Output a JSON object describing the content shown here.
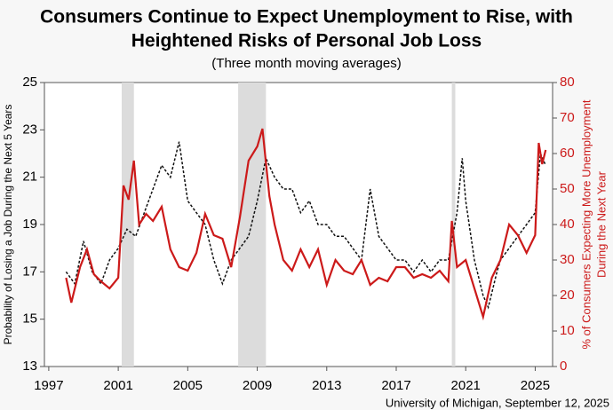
{
  "chart_data": {
    "type": "line",
    "title": "Consumers Continue to Expect Unemployment to Rise, with",
    "title_line2": "Heightened Risks of Personal Job Loss",
    "subtitle": "(Three month moving averages)",
    "y_label": "Probability of Losing a Job During the Next 5 Years",
    "y2_label": "% of Consumers Expecting More Unemployment",
    "y2_label_line2": "During the Next Year",
    "source": "University of Michigan, September 12, 2025",
    "xlim": [
      1996.75,
      2026
    ],
    "xticks": [
      1997,
      2001,
      2005,
      2009,
      2013,
      2017,
      2021,
      2025
    ],
    "ylim": [
      13,
      25
    ],
    "yticks": [
      13,
      15,
      17,
      19,
      21,
      23,
      25
    ],
    "y2lim": [
      0,
      80
    ],
    "y2ticks": [
      0,
      10,
      20,
      30,
      40,
      50,
      60,
      70,
      80
    ],
    "shaded_periods": [
      [
        2001.2,
        2001.9
      ],
      [
        2007.9,
        2009.5
      ],
      [
        2020.2,
        2020.4
      ]
    ],
    "shade_color": "#dcdcdc",
    "series": [
      {
        "name": "Probability of Losing a Job",
        "color": "#111111",
        "dashed": true,
        "axis": "y",
        "x": [
          1998,
          1998.5,
          1999,
          1999.5,
          2000,
          2000.5,
          2001,
          2001.5,
          2002,
          2002.5,
          2003,
          2003.5,
          2004,
          2004.5,
          2005,
          2005.5,
          2006,
          2006.5,
          2007,
          2007.5,
          2008,
          2008.5,
          2009,
          2009.5,
          2010,
          2010.5,
          2011,
          2011.5,
          2012,
          2012.5,
          2013,
          2013.5,
          2014,
          2014.5,
          2015,
          2015.5,
          2016,
          2016.5,
          2017,
          2017.5,
          2018,
          2018.5,
          2019,
          2019.5,
          2020,
          2020.5,
          2020.8,
          2021,
          2021.5,
          2022,
          2022.3,
          2022.8,
          2023,
          2023.5,
          2024,
          2024.5,
          2025,
          2025.3,
          2025.6
        ],
        "values": [
          17,
          16.5,
          18.3,
          17,
          16.5,
          17.5,
          18,
          18.8,
          18.5,
          19.5,
          20.5,
          21.5,
          21,
          22.5,
          20,
          19.5,
          19,
          17.5,
          16.5,
          17.5,
          18,
          18.5,
          20,
          21.8,
          21,
          20.5,
          20.5,
          19.5,
          20,
          19,
          19,
          18.5,
          18.5,
          18,
          17.5,
          20.5,
          18.5,
          18,
          17.5,
          17.5,
          17,
          17.5,
          17,
          17.5,
          17.5,
          19.5,
          21.8,
          20,
          17.5,
          16,
          15.5,
          17,
          17.5,
          18,
          18.5,
          19,
          19.5,
          22,
          21.5
        ]
      },
      {
        "name": "% Expecting More Unemployment",
        "color": "#cc1a1a",
        "dashed": false,
        "axis": "y2",
        "x": [
          1998,
          1998.3,
          1998.8,
          1999.2,
          1999.6,
          2000,
          2000.5,
          2001,
          2001.3,
          2001.6,
          2001.9,
          2002.2,
          2002.6,
          2003,
          2003.5,
          2004,
          2004.5,
          2005,
          2005.5,
          2006,
          2006.5,
          2007,
          2007.5,
          2008,
          2008.5,
          2009,
          2009.3,
          2009.7,
          2010,
          2010.5,
          2011,
          2011.5,
          2012,
          2012.5,
          2013,
          2013.5,
          2014,
          2014.5,
          2015,
          2015.5,
          2016,
          2016.5,
          2017,
          2017.5,
          2018,
          2018.5,
          2019,
          2019.5,
          2020,
          2020.2,
          2020.5,
          2021,
          2021.5,
          2022,
          2022.5,
          2023,
          2023.5,
          2024,
          2024.5,
          2025,
          2025.2,
          2025.4,
          2025.6
        ],
        "values": [
          25,
          18,
          28,
          33,
          26,
          24,
          22,
          25,
          51,
          47,
          58,
          40,
          43,
          41,
          45,
          33,
          28,
          27,
          32,
          43,
          37,
          36,
          28,
          42,
          58,
          62,
          67,
          48,
          40,
          30,
          27,
          33,
          28,
          33,
          23,
          30,
          27,
          26,
          30,
          23,
          25,
          24,
          28,
          28,
          25,
          26,
          25,
          27,
          24,
          41,
          28,
          30,
          22,
          14,
          25,
          30,
          40,
          37,
          32,
          37,
          63,
          57,
          61
        ]
      }
    ]
  }
}
